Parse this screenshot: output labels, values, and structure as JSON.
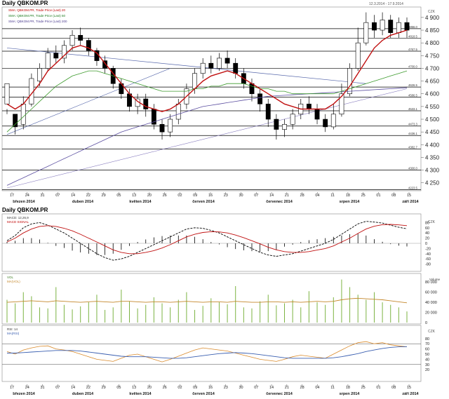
{
  "chart_data": [
    {
      "type": "candlestick",
      "title": "Daily QBKOM.PR",
      "date_range": "12.3.2014 - 17.9.2014",
      "currency": "CZK",
      "legend": [
        "SMA: QBKOM.PR, Trade Price (Last) 20",
        "SMA: QBKOM.PR, Trade Price (Last) 50",
        "SMA: QBKOM.PR, Trade Price (Last) 200"
      ],
      "price_labels": [
        "4 900",
        "4 850",
        "4 800",
        "4 750",
        "4 700",
        "4 650",
        "4 600",
        "4 550",
        "4 500",
        "4 450",
        "4 400",
        "4 350",
        "4 300",
        "4 250"
      ],
      "ylim": [
        4230,
        4930
      ],
      "horizontal_levels": [
        4856.0,
        4818.5,
        4767.5,
        4700,
        4626.5,
        4586.5,
        4533.1,
        4473.3,
        4436.1,
        4382.7,
        4300,
        4223.5
      ],
      "x_ticks": [
        "17",
        "24",
        "31",
        "07",
        "14",
        "22",
        "29",
        "05",
        "13",
        "20",
        "26",
        "02",
        "09",
        "16",
        "23",
        "30",
        "07",
        "14",
        "21",
        "28",
        "04",
        "11",
        "18",
        "25",
        "01",
        "08",
        "15"
      ],
      "month_labels": [
        "březen 2014",
        "duben 2014",
        "květen 2014",
        "červen 2014",
        "červenec 2014",
        "srpen 2014",
        "září 2014"
      ],
      "candles": [
        [
          4560,
          4640,
          4540,
          4520
        ],
        [
          4520,
          4470,
          4510,
          4440
        ],
        [
          4480,
          4560,
          4590,
          4460
        ],
        [
          4560,
          4660,
          4680,
          4550
        ],
        [
          4650,
          4700,
          4720,
          4630
        ],
        [
          4700,
          4760,
          4780,
          4690
        ],
        [
          4760,
          4740,
          4790,
          4720
        ],
        [
          4740,
          4790,
          4810,
          4720
        ],
        [
          4790,
          4830,
          4850,
          4770
        ],
        [
          4830,
          4810,
          4860,
          4790
        ],
        [
          4810,
          4770,
          4820,
          4750
        ],
        [
          4770,
          4730,
          4780,
          4710
        ],
        [
          4730,
          4700,
          4750,
          4680
        ],
        [
          4700,
          4640,
          4710,
          4620
        ],
        [
          4640,
          4600,
          4660,
          4580
        ],
        [
          4600,
          4550,
          4620,
          4530
        ],
        [
          4550,
          4580,
          4600,
          4520
        ],
        [
          4580,
          4540,
          4600,
          4510
        ],
        [
          4540,
          4480,
          4560,
          4460
        ],
        [
          4480,
          4450,
          4500,
          4420
        ],
        [
          4450,
          4500,
          4520,
          4430
        ],
        [
          4500,
          4560,
          4580,
          4480
        ],
        [
          4560,
          4620,
          4640,
          4540
        ],
        [
          4620,
          4680,
          4700,
          4600
        ],
        [
          4680,
          4720,
          4740,
          4660
        ],
        [
          4720,
          4700,
          4750,
          4680
        ],
        [
          4700,
          4740,
          4760,
          4690
        ],
        [
          4740,
          4720,
          4770,
          4700
        ],
        [
          4720,
          4680,
          4740,
          4660
        ],
        [
          4680,
          4640,
          4700,
          4620
        ],
        [
          4640,
          4600,
          4660,
          4570
        ],
        [
          4600,
          4560,
          4620,
          4530
        ],
        [
          4560,
          4500,
          4580,
          4470
        ],
        [
          4500,
          4460,
          4520,
          4420
        ],
        [
          4460,
          4480,
          4500,
          4430
        ],
        [
          4480,
          4520,
          4540,
          4460
        ],
        [
          4520,
          4560,
          4580,
          4500
        ],
        [
          4560,
          4540,
          4590,
          4520
        ],
        [
          4540,
          4500,
          4560,
          4480
        ],
        [
          4500,
          4470,
          4520,
          4450
        ],
        [
          4470,
          4520,
          4560,
          4460
        ],
        [
          4520,
          4600,
          4640,
          4510
        ],
        [
          4600,
          4700,
          4720,
          4590
        ],
        [
          4700,
          4800,
          4860,
          4690
        ],
        [
          4800,
          4880,
          4920,
          4790
        ],
        [
          4880,
          4850,
          4910,
          4820
        ],
        [
          4850,
          4890,
          4920,
          4830
        ],
        [
          4890,
          4840,
          4910,
          4820
        ],
        [
          4840,
          4880,
          4900,
          4820
        ],
        [
          4880,
          4850,
          4900,
          4820
        ]
      ],
      "sma20": [
        4560,
        4540,
        4560,
        4600,
        4640,
        4690,
        4720,
        4750,
        4780,
        4790,
        4780,
        4760,
        4720,
        4680,
        4640,
        4600,
        4570,
        4550,
        4540,
        4530,
        4540,
        4560,
        4590,
        4620,
        4650,
        4670,
        4680,
        4690,
        4680,
        4660,
        4640,
        4620,
        4600,
        4580,
        4560,
        4550,
        4540,
        4540,
        4540,
        4540,
        4560,
        4590,
        4630,
        4680,
        4730,
        4780,
        4810,
        4830,
        4840,
        4850
      ],
      "sma50": [
        4450,
        4480,
        4510,
        4540,
        4570,
        4600,
        4630,
        4650,
        4670,
        4680,
        4690,
        4690,
        4680,
        4670,
        4660,
        4650,
        4640,
        4630,
        4620,
        4610,
        4610,
        4610,
        4610,
        4620,
        4620,
        4630,
        4630,
        4640,
        4640,
        4640,
        4630,
        4620,
        4620,
        4610,
        4610,
        4600,
        4600,
        4600,
        4600,
        4600,
        4600,
        4610,
        4620,
        4630,
        4640,
        4650,
        4660,
        4670,
        4680,
        4690
      ],
      "sma200": [
        4240,
        4255,
        4270,
        4285,
        4300,
        4315,
        4330,
        4345,
        4360,
        4375,
        4390,
        4405,
        4420,
        4435,
        4450,
        4460,
        4470,
        4480,
        4490,
        4500,
        4510,
        4520,
        4530,
        4540,
        4550,
        4555,
        4560,
        4565,
        4570,
        4575,
        4580,
        4585,
        4590,
        4592,
        4594,
        4596,
        4598,
        4600,
        4602,
        4604,
        4606,
        4608,
        4610,
        4612,
        4614,
        4616,
        4618,
        4620,
        4622,
        4624
      ]
    },
    {
      "type": "line",
      "title": "Daily QBKOM.PR",
      "series_labels": [
        "MACD: 12,26,9",
        "MACD SIGNAL"
      ],
      "ylim": [
        -100,
        100
      ],
      "ticks": [
        "80",
        "60",
        "40",
        "20",
        "0",
        "-20",
        "-40",
        "-60",
        "-80"
      ],
      "macd": [
        10,
        30,
        60,
        75,
        80,
        70,
        55,
        40,
        20,
        0,
        -20,
        -40,
        -55,
        -65,
        -60,
        -50,
        -35,
        -20,
        -5,
        10,
        25,
        40,
        55,
        60,
        58,
        50,
        40,
        25,
        10,
        -5,
        -20,
        -35,
        -45,
        -50,
        -45,
        -40,
        -30,
        -20,
        -10,
        0,
        15,
        35,
        55,
        75,
        85,
        82,
        78,
        70,
        62,
        56
      ],
      "signal": [
        5,
        20,
        40,
        55,
        65,
        68,
        65,
        58,
        48,
        35,
        20,
        5,
        -10,
        -25,
        -35,
        -40,
        -40,
        -35,
        -28,
        -18,
        -5,
        10,
        25,
        35,
        42,
        45,
        44,
        40,
        32,
        22,
        10,
        -2,
        -15,
        -25,
        -32,
        -35,
        -35,
        -32,
        -26,
        -20,
        -10,
        5,
        20,
        38,
        55,
        66,
        72,
        73,
        71,
        68
      ]
    },
    {
      "type": "bar",
      "title": "Volume",
      "series_labels": [
        "VOL",
        "MA(VOL)"
      ],
      "ylim": [
        0,
        90000
      ],
      "ticks": [
        "80 000",
        "60 000",
        "40 000",
        "20 000",
        "0"
      ],
      "volume": [
        45000,
        38000,
        60000,
        52000,
        30000,
        28000,
        70000,
        35000,
        26000,
        32000,
        40000,
        55000,
        25000,
        30000,
        65000,
        42000,
        28000,
        35000,
        50000,
        38000,
        30000,
        45000,
        60000,
        25000,
        33000,
        48000,
        40000,
        36000,
        72000,
        30000,
        28000,
        42000,
        55000,
        34000,
        38000,
        45000,
        30000,
        62000,
        40000,
        35000,
        50000,
        85000,
        70000,
        55000,
        45000,
        60000,
        40000,
        35000,
        30000,
        22000
      ],
      "vol_ma": [
        40000,
        41000,
        42000,
        43000,
        42000,
        41000,
        43000,
        42000,
        41000,
        40000,
        41000,
        42000,
        41000,
        40000,
        42000,
        42000,
        41000,
        40000,
        41000,
        41000,
        40000,
        41000,
        42000,
        41000,
        40000,
        41000,
        41000,
        40000,
        42000,
        41000,
        40000,
        40000,
        41000,
        41000,
        40000,
        41000,
        40000,
        41000,
        42000,
        41000,
        42000,
        45000,
        47000,
        48000,
        47000,
        46000,
        45000,
        43000,
        41000,
        39000
      ]
    },
    {
      "type": "line",
      "title": "RSI",
      "series_labels": [
        "RSI: 14",
        "MA(RSI)"
      ],
      "ylim": [
        0,
        100
      ],
      "ticks": [
        "80",
        "70",
        "60",
        "50",
        "40",
        "30",
        "20"
      ],
      "rsi": [
        55,
        50,
        58,
        62,
        65,
        66,
        60,
        58,
        55,
        50,
        45,
        40,
        38,
        36,
        42,
        48,
        50,
        45,
        40,
        35,
        40,
        46,
        52,
        58,
        62,
        60,
        58,
        56,
        52,
        48,
        44,
        40,
        38,
        36,
        40,
        45,
        48,
        46,
        44,
        42,
        50,
        58,
        66,
        72,
        74,
        70,
        72,
        68,
        66,
        64
      ],
      "rsi_ma": [
        52,
        52,
        53,
        54,
        55,
        56,
        57,
        57,
        57,
        56,
        54,
        52,
        50,
        48,
        46,
        45,
        45,
        45,
        44,
        43,
        42,
        42,
        43,
        45,
        47,
        49,
        51,
        52,
        53,
        52,
        51,
        49,
        47,
        45,
        43,
        42,
        42,
        42,
        42,
        42,
        43,
        45,
        48,
        51,
        55,
        58,
        61,
        63,
        64,
        64
      ]
    }
  ]
}
